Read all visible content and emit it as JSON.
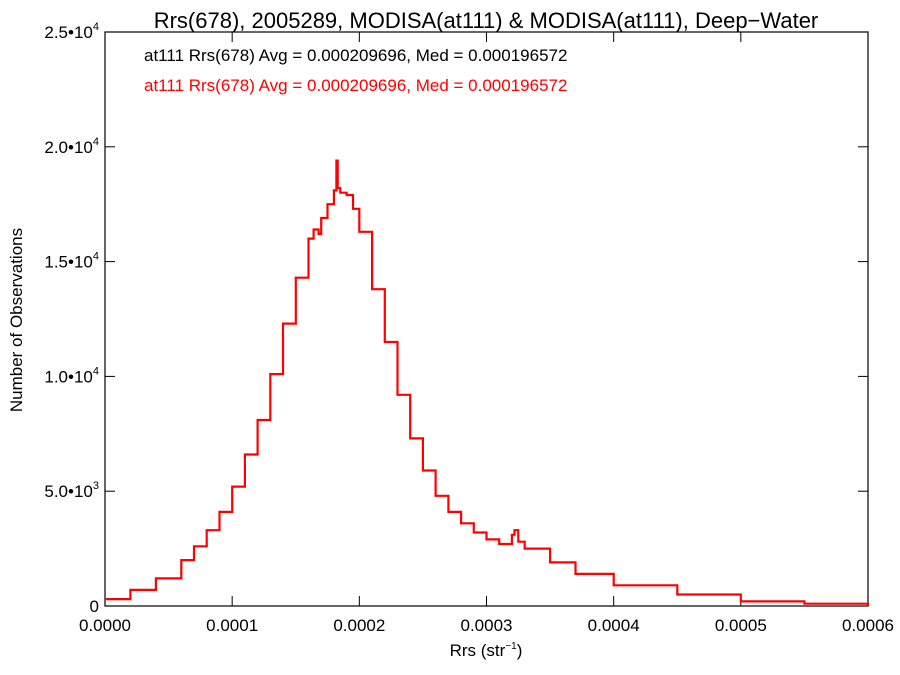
{
  "chart_data": {
    "type": "line",
    "title": "Rrs(678), 2005289, MODISA(at111) & MODISA(at111), Deep−Water",
    "xlabel": {
      "base": "Rrs (str",
      "sup": "−1",
      "tail": ")"
    },
    "ylabel": "Number of Observations",
    "xlim": [
      0.0,
      0.0006
    ],
    "ylim": [
      0,
      25000
    ],
    "grid": false,
    "x_ticks": [
      {
        "value": 0.0,
        "label": "0.0000"
      },
      {
        "value": 0.0001,
        "label": "0.0001"
      },
      {
        "value": 0.0002,
        "label": "0.0002"
      },
      {
        "value": 0.0003,
        "label": "0.0003"
      },
      {
        "value": 0.0004,
        "label": "0.0004"
      },
      {
        "value": 0.0005,
        "label": "0.0005"
      },
      {
        "value": 0.0006,
        "label": "0.0006"
      }
    ],
    "y_ticks": [
      {
        "value": 0,
        "mant": "0",
        "exp": ""
      },
      {
        "value": 5000,
        "mant": "5.0•10",
        "exp": "3"
      },
      {
        "value": 10000,
        "mant": "1.0•10",
        "exp": "4"
      },
      {
        "value": 15000,
        "mant": "1.5•10",
        "exp": "4"
      },
      {
        "value": 20000,
        "mant": "2.0•10",
        "exp": "4"
      },
      {
        "value": 25000,
        "mant": "2.5•10",
        "exp": "4"
      }
    ],
    "annotations": [
      {
        "text": "at111 Rrs(678) Avg = 0.000209696, Med = 0.000196572",
        "color": "#000000"
      },
      {
        "text": "at111 Rrs(678) Avg = 0.000209696, Med = 0.000196572",
        "color": "#ff0000"
      }
    ],
    "series": [
      {
        "color": "#ff0000",
        "step": true,
        "x": [
          0.0,
          2e-05,
          4e-05,
          6e-05,
          7e-05,
          8e-05,
          9e-05,
          0.0001,
          0.00011,
          0.00012,
          0.00013,
          0.00014,
          0.00015,
          0.00016,
          0.000164,
          0.000168,
          0.00017,
          0.000175,
          0.00018,
          0.000182,
          0.000183,
          0.000185,
          0.00019,
          0.000195,
          0.0002,
          0.00021,
          0.00022,
          0.00023,
          0.00024,
          0.00025,
          0.00026,
          0.00027,
          0.00028,
          0.00029,
          0.0003,
          0.00031,
          0.00032,
          0.000322,
          0.000325,
          0.00033,
          0.00035,
          0.00037,
          0.0004,
          0.00045,
          0.0005,
          0.00055,
          0.0006
        ],
        "y": [
          300,
          700,
          1200,
          2000,
          2600,
          3300,
          4100,
          5200,
          6600,
          8100,
          10100,
          12300,
          14300,
          16000,
          16400,
          16200,
          16900,
          17500,
          18100,
          19400,
          18200,
          18000,
          17900,
          17300,
          16300,
          13800,
          11500,
          9200,
          7300,
          5900,
          4800,
          4100,
          3600,
          3200,
          2900,
          2700,
          3100,
          3300,
          2800,
          2500,
          1900,
          1400,
          900,
          500,
          200,
          100,
          30
        ]
      }
    ]
  }
}
